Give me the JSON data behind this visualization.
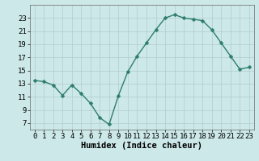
{
  "x": [
    0,
    1,
    2,
    3,
    4,
    5,
    6,
    7,
    8,
    9,
    10,
    11,
    12,
    13,
    14,
    15,
    16,
    17,
    18,
    19,
    20,
    21,
    22,
    23
  ],
  "y": [
    13.5,
    13.3,
    12.8,
    11.2,
    12.8,
    11.5,
    10.0,
    7.8,
    6.8,
    11.2,
    14.8,
    17.2,
    19.2,
    21.2,
    23.0,
    23.5,
    23.0,
    22.8,
    22.6,
    21.2,
    19.2,
    17.2,
    15.2,
    15.5
  ],
  "xlabel": "Humidex (Indice chaleur)",
  "ylim": [
    6,
    25
  ],
  "xlim": [
    -0.5,
    23.5
  ],
  "yticks": [
    7,
    9,
    11,
    13,
    15,
    17,
    19,
    21,
    23
  ],
  "xticks": [
    0,
    1,
    2,
    3,
    4,
    5,
    6,
    7,
    8,
    9,
    10,
    11,
    12,
    13,
    14,
    15,
    16,
    17,
    18,
    19,
    20,
    21,
    22,
    23
  ],
  "line_color": "#2e7d6e",
  "bg_color": "#cce8e8",
  "grid_color": "#b0cccc",
  "marker": "D",
  "marker_size": 2.5,
  "line_width": 1.0,
  "tick_fontsize": 6.5,
  "xlabel_fontsize": 7.5
}
